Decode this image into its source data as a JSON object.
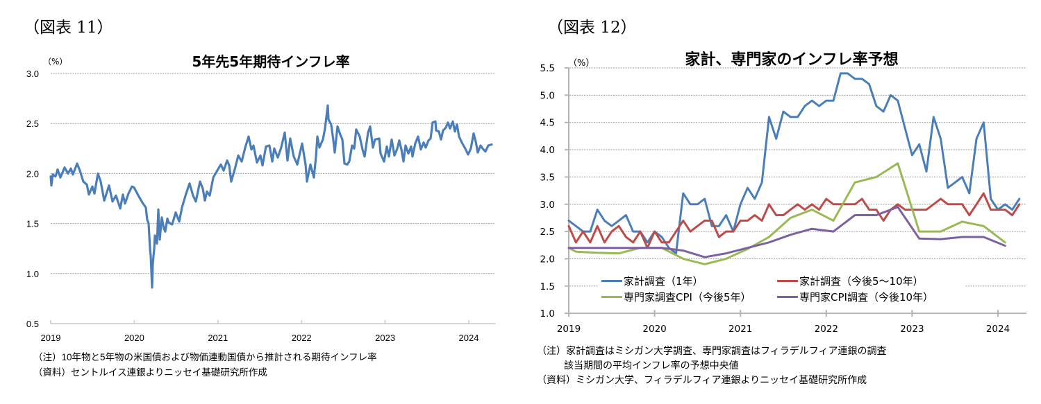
{
  "figures": [
    {
      "label": "（図表 11）",
      "title": "5年先5年期待インフレ率",
      "unit": "（%）",
      "notes": [
        "（注）10年物と5年物の米国債および物価連動国債から推計される期待インフレ率",
        "（資料）セントルイス連銀よりニッセイ基礎研究所作成"
      ]
    },
    {
      "label": "（図表 12）",
      "title": "家計、専門家のインフレ率予想",
      "unit": "（%）",
      "notes": [
        "（注）家計調査はミシガン大学調査、専門家調査はフィラデルフィア連銀の調査",
        "該当期間の平均インフレ率の予想中央値",
        "（資料）ミシガン大学、フィラデルフィア連銀よりニッセイ基礎研究所作成"
      ]
    }
  ],
  "chart_data": [
    {
      "type": "line",
      "title": "5年先5年期待インフレ率",
      "xlabel": "",
      "ylabel": "（%）",
      "xlim": [
        2019,
        2024.32
      ],
      "ylim": [
        0.5,
        3.0
      ],
      "yticks": [
        "0.5",
        "1.0",
        "1.5",
        "2.0",
        "2.5",
        "3.0"
      ],
      "xticks": [
        "2019",
        "2020",
        "2021",
        "2022",
        "2023",
        "2024"
      ],
      "grid": true,
      "legend": "none",
      "series": [
        {
          "name": "5年先5年期待インフレ率",
          "color": "#4a7ebb",
          "x": [
            2019.0,
            2019.008,
            2019.025,
            2019.058,
            2019.083,
            2019.116,
            2019.166,
            2019.208,
            2019.241,
            2019.266,
            2019.316,
            2019.349,
            2019.39,
            2019.432,
            2019.457,
            2019.498,
            2019.523,
            2019.565,
            2019.598,
            2019.64,
            2019.698,
            2019.739,
            2019.781,
            2019.831,
            2019.864,
            2019.889,
            2019.93,
            2019.972,
            2019.997,
            2020.055,
            2020.096,
            2020.138,
            2020.154,
            2020.171,
            2020.188,
            2020.196,
            2020.213,
            2020.221,
            2020.238,
            2020.246,
            2020.271,
            2020.287,
            2020.304,
            2020.329,
            2020.354,
            2020.37,
            2020.395,
            2020.412,
            2020.453,
            2020.495,
            2020.537,
            2020.57,
            2020.595,
            2020.62,
            2020.661,
            2020.703,
            2020.736,
            2020.786,
            2020.819,
            2020.844,
            2020.869,
            2020.902,
            2020.944,
            2020.985,
            2021.035,
            2021.068,
            2021.11,
            2021.135,
            2021.159,
            2021.201,
            2021.243,
            2021.284,
            2021.326,
            2021.367,
            2021.4,
            2021.425,
            2021.467,
            2021.508,
            2021.533,
            2021.575,
            2021.616,
            2021.65,
            2021.674,
            2021.716,
            2021.757,
            2021.799,
            2021.832,
            2021.865,
            2021.907,
            2021.949,
            2022.007,
            2022.048,
            2022.065,
            2022.106,
            2022.148,
            2022.173,
            2022.189,
            2022.214,
            2022.256,
            2022.281,
            2022.314,
            2022.322,
            2022.355,
            2022.38,
            2022.397,
            2022.43,
            2022.463,
            2022.488,
            2022.513,
            2022.546,
            2022.571,
            2022.605,
            2022.63,
            2022.654,
            2022.696,
            2022.729,
            2022.754,
            2022.796,
            2022.821,
            2022.854,
            2022.879,
            2022.929,
            2022.945,
            2022.987,
            2023.02,
            2023.045,
            2023.078,
            2023.111,
            2023.145,
            2023.169,
            2023.194,
            2023.219,
            2023.244,
            2023.277,
            2023.311,
            2023.327,
            2023.36,
            2023.394,
            2023.427,
            2023.46,
            2023.485,
            2023.518,
            2023.543,
            2023.568,
            2023.601,
            2023.61,
            2023.643,
            2023.668,
            2023.693,
            2023.726,
            2023.751,
            2023.776,
            2023.809,
            2023.834,
            2023.859,
            2023.884,
            2023.917,
            2023.958,
            2023.992,
            2024.025,
            2024.058,
            2024.083,
            2024.108,
            2024.141,
            2024.166,
            2024.199,
            2024.233,
            2024.274
          ],
          "values": [
            1.97,
            1.88,
            1.99,
            1.97,
            2.04,
            1.96,
            2.06,
            2.0,
            2.05,
            1.99,
            2.1,
            2.03,
            1.92,
            1.89,
            1.79,
            1.87,
            1.8,
            2.0,
            1.92,
            1.73,
            1.88,
            1.72,
            1.78,
            1.65,
            1.79,
            1.7,
            1.8,
            1.87,
            1.86,
            1.77,
            1.71,
            1.66,
            1.54,
            1.5,
            1.25,
            1.18,
            0.86,
            1.1,
            1.25,
            1.38,
            1.3,
            1.64,
            1.34,
            1.56,
            1.45,
            1.42,
            1.55,
            1.51,
            1.49,
            1.61,
            1.52,
            1.66,
            1.73,
            1.8,
            1.9,
            1.78,
            1.72,
            1.92,
            1.85,
            1.73,
            1.82,
            1.78,
            1.96,
            2.02,
            2.09,
            2.03,
            2.13,
            2.08,
            1.92,
            2.04,
            2.18,
            2.12,
            2.26,
            2.37,
            2.24,
            2.28,
            2.11,
            2.18,
            2.08,
            2.27,
            2.28,
            2.12,
            2.25,
            2.16,
            2.26,
            2.41,
            2.13,
            2.35,
            2.17,
            2.09,
            2.3,
            2.09,
            1.92,
            2.09,
            1.96,
            2.17,
            2.37,
            2.26,
            2.34,
            2.45,
            2.68,
            2.54,
            2.49,
            2.33,
            2.21,
            2.47,
            2.39,
            2.34,
            2.1,
            2.09,
            2.12,
            2.28,
            2.25,
            2.44,
            2.37,
            2.24,
            2.17,
            2.41,
            2.47,
            2.26,
            2.34,
            2.35,
            2.2,
            2.12,
            2.27,
            2.17,
            2.34,
            2.18,
            2.25,
            2.33,
            2.24,
            2.12,
            2.28,
            2.2,
            2.27,
            2.17,
            2.3,
            2.37,
            2.24,
            2.31,
            2.26,
            2.33,
            2.35,
            2.51,
            2.52,
            2.43,
            2.42,
            2.34,
            2.43,
            2.46,
            2.51,
            2.45,
            2.52,
            2.42,
            2.49,
            2.37,
            2.31,
            2.25,
            2.19,
            2.25,
            2.4,
            2.32,
            2.21,
            2.28,
            2.25,
            2.22,
            2.28,
            2.29
          ]
        }
      ]
    },
    {
      "type": "line",
      "title": "家計、専門家のインフレ率予想",
      "xlabel": "",
      "ylabel": "（%）",
      "xlim": [
        "2019-01",
        "2024-05"
      ],
      "ylim": [
        1.0,
        5.5
      ],
      "yticks": [
        "1.0",
        "1.5",
        "2.0",
        "2.5",
        "3.0",
        "3.5",
        "4.0",
        "4.5",
        "5.0",
        "5.5"
      ],
      "xticks": [
        "2019",
        "2020",
        "2021",
        "2022",
        "2023",
        "2024"
      ],
      "grid": true,
      "legend": "bottom-inside",
      "x": [
        "2019-01",
        "2019-02",
        "2019-03",
        "2019-04",
        "2019-05",
        "2019-06",
        "2019-07",
        "2019-08",
        "2019-09",
        "2019-10",
        "2019-11",
        "2019-12",
        "2020-01",
        "2020-02",
        "2020-03",
        "2020-04",
        "2020-05",
        "2020-06",
        "2020-07",
        "2020-08",
        "2020-09",
        "2020-10",
        "2020-11",
        "2020-12",
        "2021-01",
        "2021-02",
        "2021-03",
        "2021-04",
        "2021-05",
        "2021-06",
        "2021-07",
        "2021-08",
        "2021-09",
        "2021-10",
        "2021-11",
        "2021-12",
        "2022-01",
        "2022-02",
        "2022-03",
        "2022-04",
        "2022-05",
        "2022-06",
        "2022-07",
        "2022-08",
        "2022-09",
        "2022-10",
        "2022-11",
        "2022-12",
        "2023-01",
        "2023-02",
        "2023-03",
        "2023-04",
        "2023-05",
        "2023-06",
        "2023-07",
        "2023-08",
        "2023-09",
        "2023-10",
        "2023-11",
        "2023-12",
        "2024-01",
        "2024-02",
        "2024-03",
        "2024-04"
      ],
      "series": [
        {
          "name": "家計調査（1年）",
          "color": "#4a7ebb",
          "values": [
            2.7,
            2.6,
            2.5,
            2.5,
            2.9,
            2.7,
            2.6,
            2.7,
            2.8,
            2.5,
            2.5,
            2.3,
            2.5,
            2.4,
            2.2,
            2.1,
            3.2,
            3.0,
            3.0,
            3.1,
            2.6,
            2.6,
            2.8,
            2.5,
            3.0,
            3.3,
            3.1,
            3.4,
            4.6,
            4.2,
            4.7,
            4.6,
            4.6,
            4.8,
            4.9,
            4.8,
            4.9,
            4.9,
            5.4,
            5.4,
            5.3,
            5.3,
            5.2,
            4.8,
            4.7,
            5.0,
            4.9,
            4.4,
            3.9,
            4.1,
            3.6,
            4.6,
            4.2,
            3.3,
            3.4,
            3.5,
            3.2,
            4.2,
            4.5,
            3.1,
            2.9,
            3.0,
            2.9,
            3.1
          ]
        },
        {
          "name": "家計調査（今後5～10年）",
          "color": "#be4b48",
          "values": [
            2.6,
            2.3,
            2.5,
            2.3,
            2.6,
            2.3,
            2.5,
            2.6,
            2.4,
            2.3,
            2.5,
            2.2,
            2.5,
            2.3,
            2.3,
            2.5,
            2.7,
            2.5,
            2.6,
            2.7,
            2.7,
            2.4,
            2.5,
            2.5,
            2.7,
            2.7,
            2.8,
            2.7,
            3.0,
            2.8,
            2.8,
            2.9,
            3.0,
            2.9,
            3.0,
            2.9,
            3.1,
            3.0,
            3.0,
            3.0,
            3.0,
            3.1,
            2.9,
            2.9,
            2.7,
            2.9,
            3.0,
            2.9,
            2.9,
            2.9,
            2.9,
            3.0,
            3.1,
            3.0,
            3.0,
            3.0,
            2.8,
            3.0,
            3.2,
            2.9,
            2.9,
            2.9,
            2.8,
            3.0
          ]
        },
        {
          "name": "専門家調査CPI（今後5年）",
          "color": "#98b954",
          "x": [
            "2019-01",
            "2019-02",
            "2019-05",
            "2019-08",
            "2019-11",
            "2020-02",
            "2020-05",
            "2020-08",
            "2020-11",
            "2021-02",
            "2021-05",
            "2021-08",
            "2021-11",
            "2022-02",
            "2022-05",
            "2022-08",
            "2022-11",
            "2023-02",
            "2023-05",
            "2023-08",
            "2023-11",
            "2024-02"
          ],
          "values": [
            2.2,
            2.13,
            2.11,
            2.1,
            2.2,
            2.2,
            2.0,
            1.9,
            2.0,
            2.18,
            2.4,
            2.75,
            2.9,
            2.7,
            3.4,
            3.5,
            3.75,
            2.5,
            2.5,
            2.68,
            2.6,
            2.3
          ]
        },
        {
          "name": "専門家CPI調査（今後10年）",
          "color": "#7d60a0",
          "x": [
            "2019-01",
            "2019-02",
            "2019-05",
            "2019-08",
            "2019-11",
            "2020-02",
            "2020-05",
            "2020-08",
            "2020-11",
            "2021-02",
            "2021-05",
            "2021-08",
            "2021-11",
            "2022-02",
            "2022-05",
            "2022-08",
            "2022-11",
            "2023-02",
            "2023-05",
            "2023-08",
            "2023-11",
            "2024-02"
          ],
          "values": [
            2.2,
            2.2,
            2.2,
            2.2,
            2.2,
            2.2,
            2.15,
            2.03,
            2.1,
            2.2,
            2.3,
            2.44,
            2.55,
            2.5,
            2.8,
            2.8,
            2.95,
            2.37,
            2.36,
            2.4,
            2.4,
            2.24
          ]
        }
      ]
    }
  ]
}
